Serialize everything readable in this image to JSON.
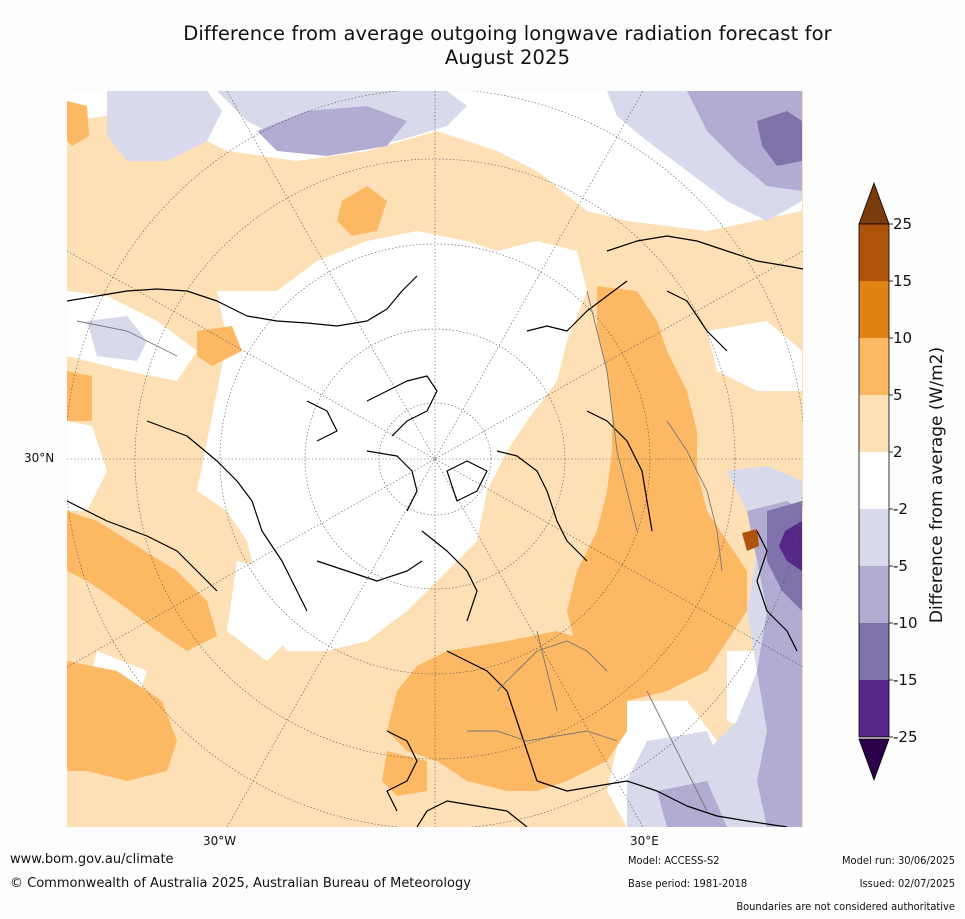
{
  "title_line1": "Difference from average outgoing longwave radiation forecast for",
  "title_line2": "August 2025",
  "map": {
    "projection": "north-polar-stereographic",
    "lat_labels": [
      "30°N"
    ],
    "lon_labels": [
      "30°W",
      "30°E"
    ]
  },
  "colorbar": {
    "label": "Difference from average (W/m2)",
    "ticks": [
      "25",
      "15",
      "10",
      "5",
      "2",
      "-2",
      "-5",
      "-10",
      "-15",
      "-25"
    ],
    "colors": [
      "#7b3a0c",
      "#b0530a",
      "#e08214",
      "#fdb863",
      "#fee0b6",
      "#ffffff",
      "#d8daeb",
      "#b2abd2",
      "#8073ac",
      "#542788",
      "#2d004b"
    ]
  },
  "footer": {
    "url": "www.bom.gov.au/climate",
    "copyright": "© Commonwealth of Australia 2025, Australian Bureau of Meteorology",
    "model": "Model: ACCESS-S2",
    "base_period": "Base period: 1981-2018",
    "model_run": "Model run: 30/06/2025",
    "issued": "Issued: 02/07/2025",
    "disclaimer": "Boundaries are not considered authoritative"
  }
}
